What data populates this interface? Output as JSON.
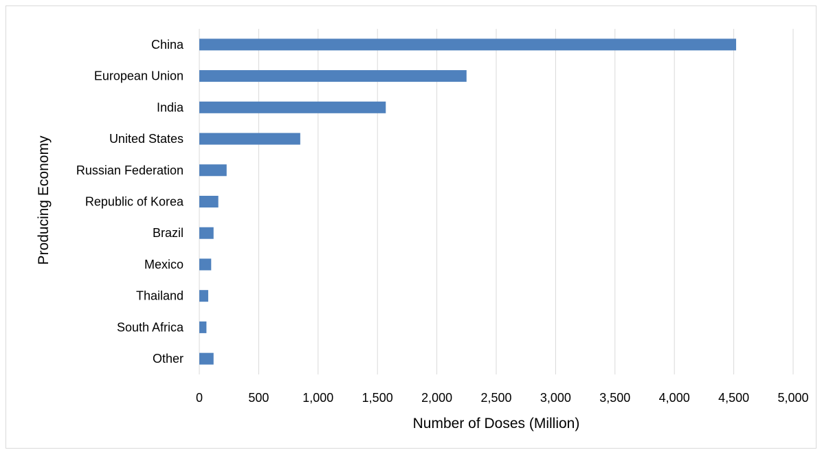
{
  "chart_data": {
    "type": "bar",
    "orientation": "horizontal",
    "categories": [
      "China",
      "European Union",
      "India",
      "United States",
      "Russian Federation",
      "Republic of Korea",
      "Brazil",
      "Mexico",
      "Thailand",
      "South Africa",
      "Other"
    ],
    "values": [
      4520,
      2250,
      1570,
      850,
      230,
      160,
      120,
      100,
      75,
      60,
      120
    ],
    "xlabel": "Number of Doses (Million)",
    "ylabel": "Producing Economy",
    "xlim": [
      0,
      5000
    ],
    "xticks": [
      "0",
      "500",
      "1,000",
      "1,500",
      "2,000",
      "2,500",
      "3,000",
      "3,500",
      "4,000",
      "4,500",
      "5,000"
    ],
    "grid": "vertical",
    "legend": "none",
    "bar_color": "#4f81bd",
    "grid_color": "#d9d9d9"
  }
}
